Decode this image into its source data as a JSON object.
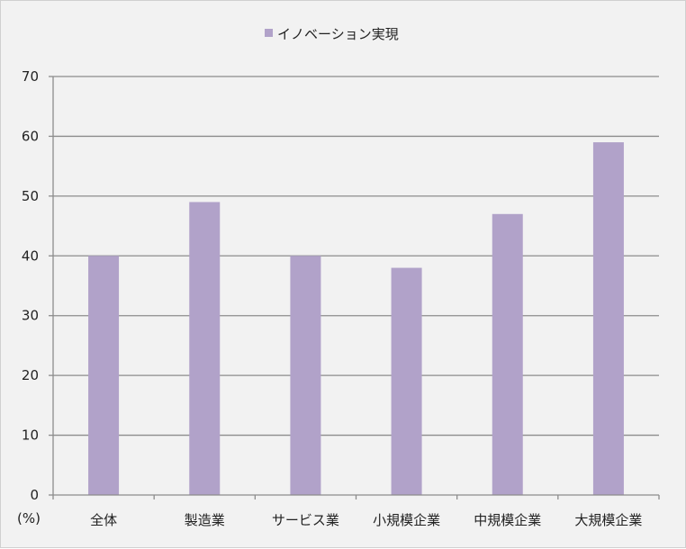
{
  "chart_data": {
    "type": "bar",
    "categories": [
      "全体",
      "製造業",
      "サービス業",
      "小規模企業",
      "中規模企業",
      "大規模企業"
    ],
    "series": [
      {
        "name": "イノベーション実現",
        "values": [
          40,
          49,
          40,
          38,
          47,
          59
        ],
        "color": "#b1a2c9"
      }
    ],
    "ylim": [
      0,
      70
    ],
    "yticks": [
      0,
      10,
      20,
      30,
      40,
      50,
      60,
      70
    ],
    "ylabel": "(%)",
    "grid": true,
    "legend_position": "top-center",
    "colors": {
      "gridline": "#8c8c8c",
      "axis": "#8c8c8c",
      "background": "#f2f2f2"
    }
  }
}
